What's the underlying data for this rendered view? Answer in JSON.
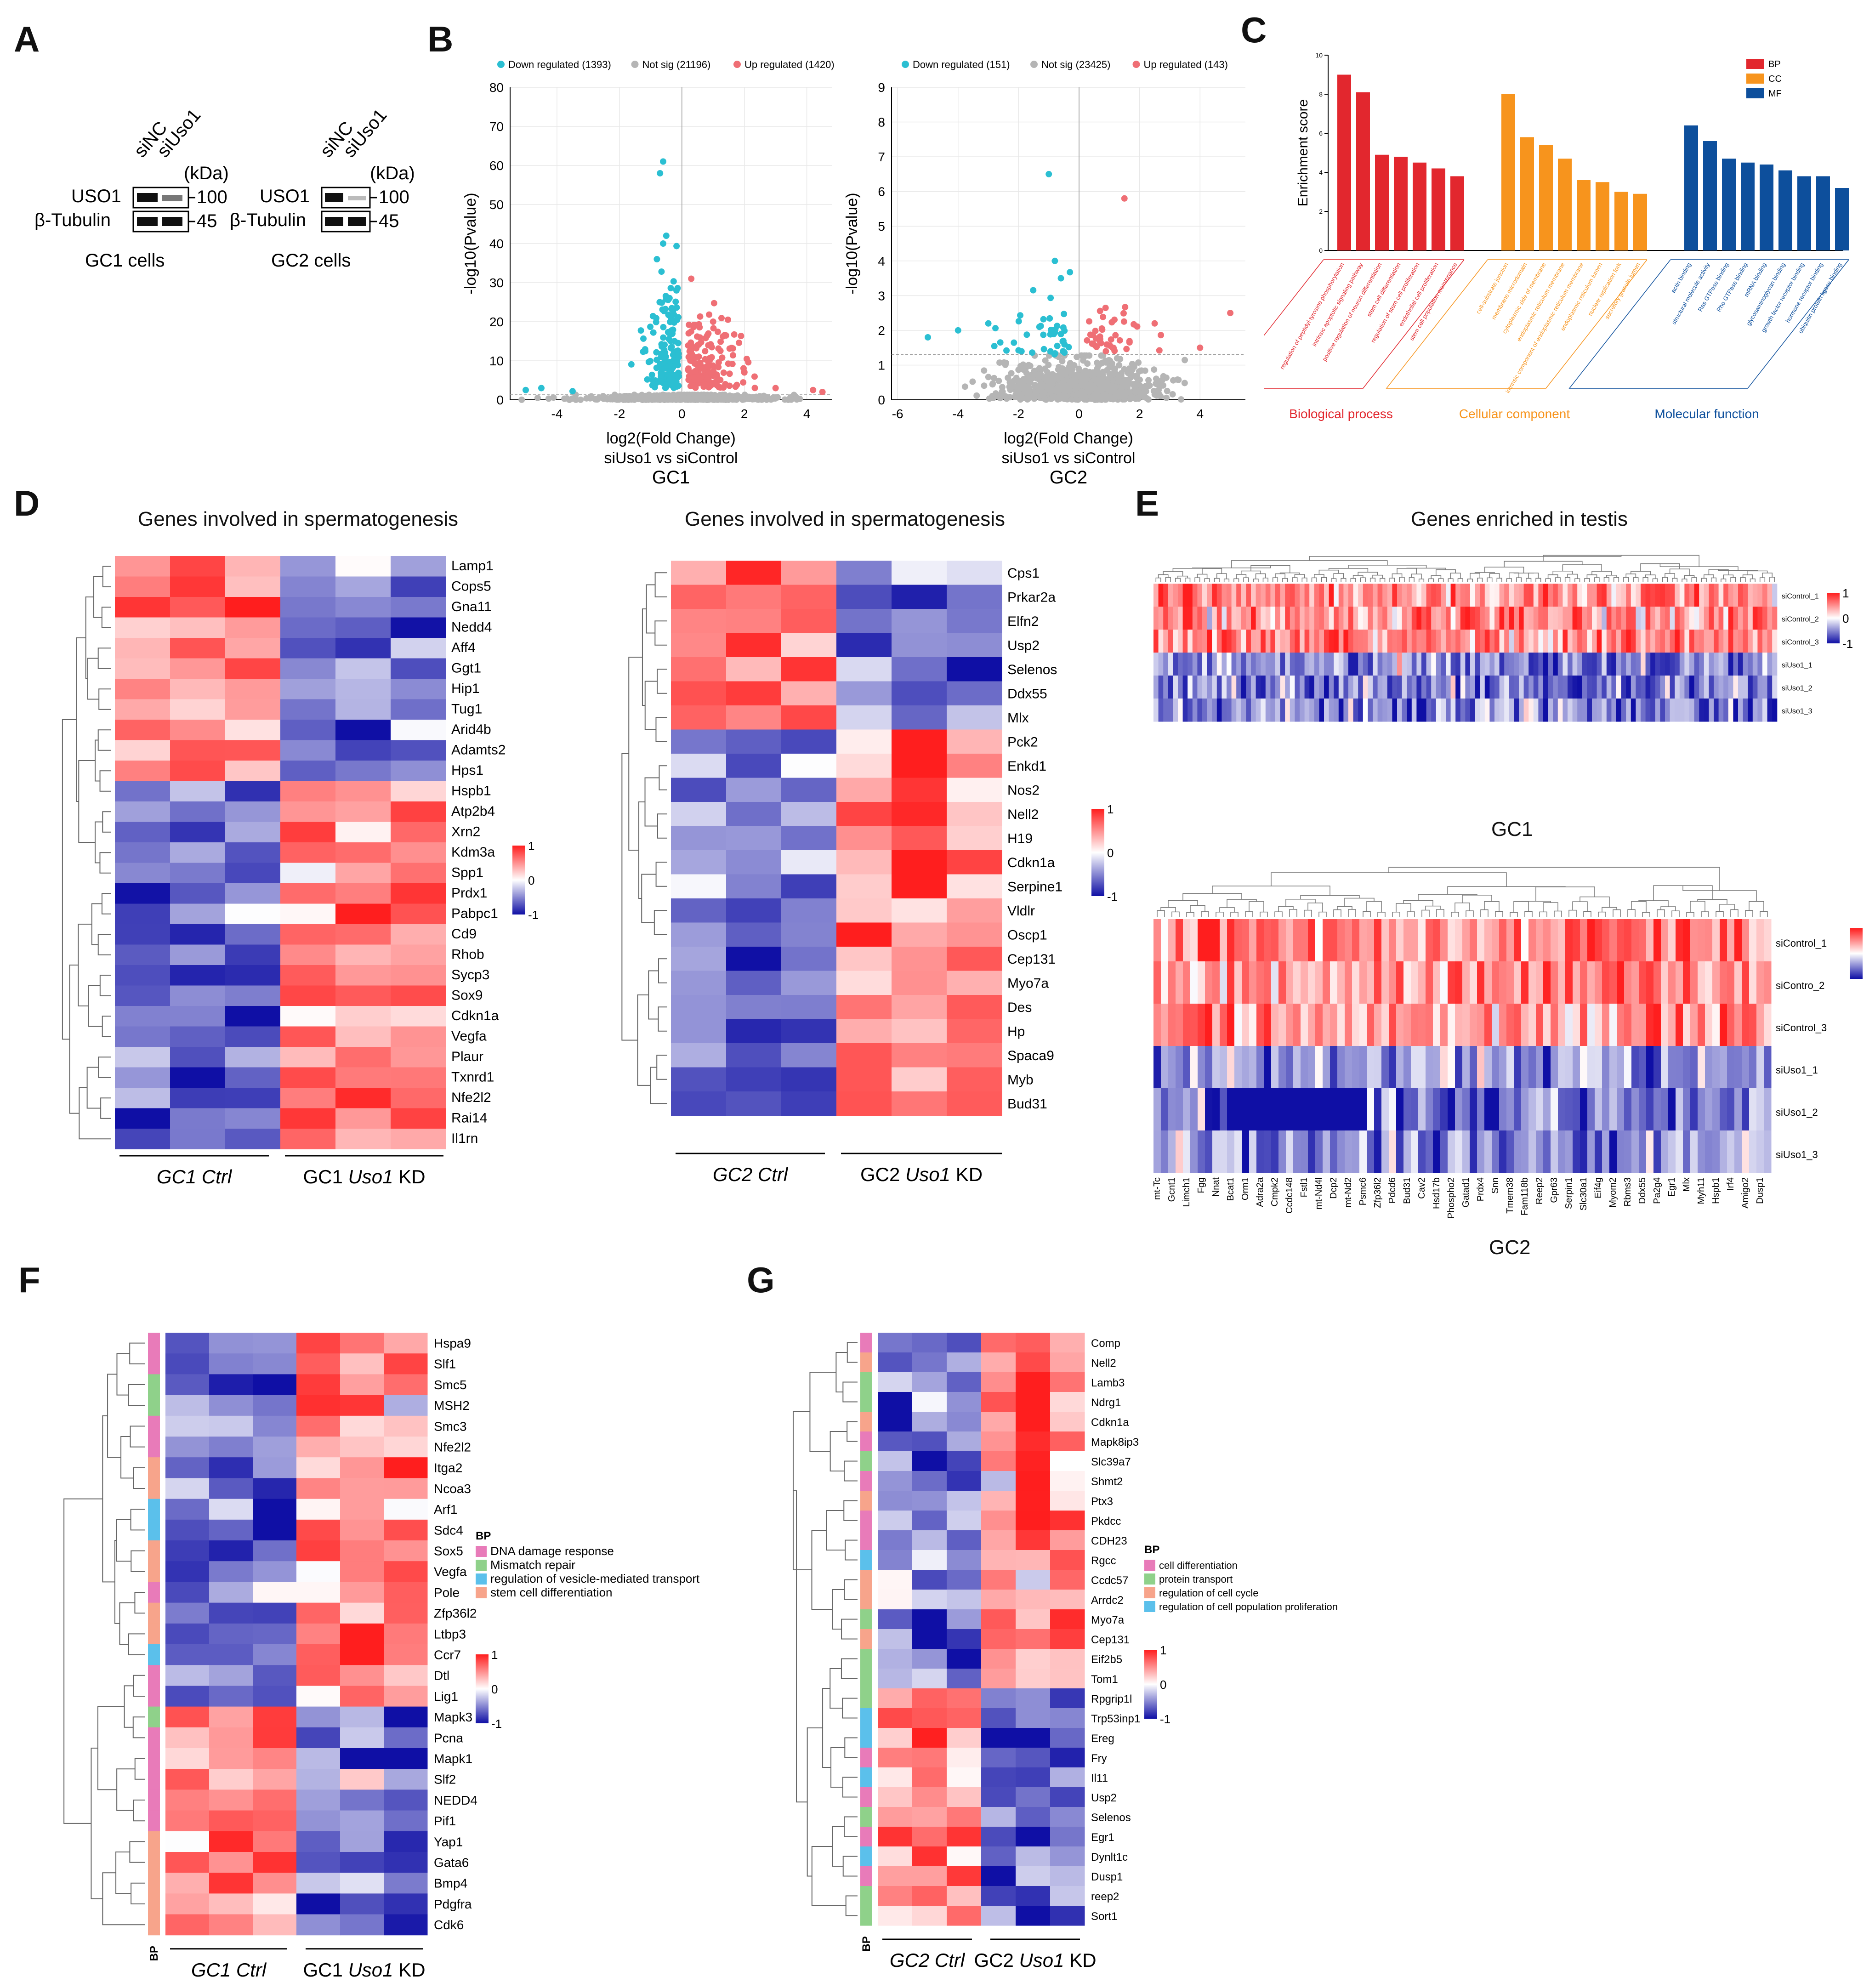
{
  "panelA": {
    "label": "A",
    "siNC": "siNC",
    "siUso1": "siUso1",
    "kda": "(kDa)",
    "uso1": "USO1",
    "tubulin": "β-Tubulin",
    "m100": "100",
    "m45": "45",
    "gc1": "GC1 cells",
    "gc2": "GC2 cells"
  },
  "panelB": {
    "label": "B",
    "gc1": {
      "legend_down": "Down regulated (1393)",
      "legend_ns": "Not sig (21196)",
      "legend_up": "Up regulated (1420)",
      "yticks": [
        "0",
        "10",
        "20",
        "30",
        "40",
        "50",
        "60",
        "70",
        "80"
      ],
      "xticks": [
        "-4",
        "-2",
        "0",
        "2",
        "4"
      ],
      "xlabel": "log2(Fold Change)",
      "comparison": "siUso1 vs siControl",
      "cell": "GC1"
    },
    "gc2": {
      "legend_down": "Down regulated (151)",
      "legend_ns": "Not sig (23425)",
      "legend_up": "Up regulated (143)",
      "yticks": [
        "0",
        "1",
        "2",
        "3",
        "4",
        "5",
        "6",
        "7",
        "8",
        "9"
      ],
      "xticks": [
        "-6",
        "-4",
        "-2",
        "0",
        "2",
        "4"
      ],
      "xlabel": "log2(Fold Change)",
      "comparison": "siUso1 vs siControl",
      "cell": "GC2"
    },
    "ylabel": "-log10(Pvalue)",
    "colors": {
      "down": "#2bbfd2",
      "ns": "#b5b5b5",
      "up": "#ef6f75"
    }
  },
  "panelC": {
    "label": "C",
    "ylabel": "Enrichment score",
    "legend": [
      "BP",
      "CC",
      "MF"
    ],
    "colors": {
      "BP": "#e2272e",
      "CC": "#f7941d",
      "MF": "#0d4f9c"
    },
    "bp_terms": [
      "regulation of peptidyl-tyrosine phosphorylation",
      "intrinsic apoptotic signaling pathway",
      "positive regulation of neuron differentiation",
      "stem cell differentiation",
      "regulation of stem cell proliferation",
      "endothelial cell proliferation",
      "stem cell population maintenance"
    ],
    "cc_terms": [
      "cell-substrate junction",
      "membrane microdomain",
      "cytoplasmic side of membrane",
      "endoplasmic reticulum membrane",
      "intrinsic component of endoplasmic reticulum membrane",
      "endoplasmic reticulum lumen",
      "nuclear replication fork",
      "secretory granule lumen"
    ],
    "mf_terms": [
      "actin binding",
      "structural molecule activity",
      "Ras GTPase binding",
      "Rho GTPase binding",
      "mRNA binding",
      "glycosaminoglycan binding",
      "growth factor receptor binding",
      "hormone receptor binding",
      "ubiquitin protein ligase binding"
    ],
    "cat_bp": "Biological process",
    "cat_cc": "Cellular component",
    "cat_mf": "Molecular function"
  },
  "panelD": {
    "label": "D",
    "title1": "Genes involved in spermatogenesis",
    "title2": "Genes involved in spermatogenesis",
    "genes1": [
      "Lamp1",
      "Cops5",
      "Gna11",
      "Nedd4",
      "Aff4",
      "Ggt1",
      "Hip1",
      "Tug1",
      "Arid4b",
      "Adamts2",
      "Hps1",
      "Hspb1",
      "Atp2b4",
      "Xrn2",
      "Kdm3a",
      "Spp1",
      "Prdx1",
      "Pabpc1",
      "Cd9",
      "Rhob",
      "Sycp3",
      "Sox9",
      "Cdkn1a",
      "Vegfa",
      "Plaur",
      "Txnrd1",
      "Nfe2l2",
      "Rai14",
      "Il1rn"
    ],
    "genes2": [
      "Cps1",
      "Prkar2a",
      "Elfn2",
      "Usp2",
      "Selenos",
      "Ddx55",
      "Mlx",
      "Pck2",
      "Enkd1",
      "Nos2",
      "Nell2",
      "H19",
      "Cdkn1a",
      "Serpine1",
      "Vldlr",
      "Oscp1",
      "Cep131",
      "Myo7a",
      "Des",
      "Hp",
      "Spaca9",
      "Myb",
      "Bud31"
    ],
    "scale": [
      "1",
      "0",
      "-1"
    ],
    "group1_ctrl": "GC1 Ctrl",
    "group1_kd_prefix": "GC1 ",
    "group1_kd_gene": "Uso1",
    "group1_kd_suffix": " KD",
    "group2_ctrl": "GC2 Ctrl",
    "group2_kd_prefix": "GC2 ",
    "group2_kd_gene": "Uso1",
    "group2_kd_suffix": " KD"
  },
  "panelE": {
    "label": "E",
    "title": "Genes enriched in testis",
    "rows1": [
      "siControl_1",
      "siControl_2",
      "siControl_3",
      "siUso1_1",
      "siUso1_2",
      "siUso1_3"
    ],
    "rows2": [
      "siControl_1",
      "siContro_2",
      "siControl_3",
      "siUso1_1",
      "siUso1_2",
      "siUso1_3"
    ],
    "scale": [
      "1",
      "0",
      "-1"
    ],
    "gc1": "GC1",
    "gc2": "GC2",
    "cols2": [
      "mt-Tc",
      "Gcnt1",
      "Limch1",
      "Fgg",
      "Nnat",
      "Bcat1",
      "Orm1",
      "Adra2a",
      "Cmpk2",
      "Ccdc148",
      "Fstl1",
      "mt-Nd4l",
      "Dcp2",
      "mt-Nd2",
      "Psmc6",
      "Zfp36l2",
      "Pdcd6",
      "Bud31",
      "Cav2",
      "Hsd17b",
      "Phospho2",
      "Gatad1",
      "Prdx4",
      "Snn",
      "Tmem38",
      "Fam118b",
      "Reep2",
      "Gpr63",
      "Serpin1",
      "Slc30a1",
      "Eif4g",
      "Myom2",
      "Rbms3",
      "Ddx55",
      "Pa2g4",
      "Egr1",
      "Mlx",
      "Myh11",
      "Hspb1",
      "Irf4",
      "Amigo2",
      "Dusp1"
    ]
  },
  "panelF": {
    "label": "F",
    "genes": [
      "Hspa9",
      "Slf1",
      "Smc5",
      "MSH2",
      "Smc3",
      "Nfe2l2",
      "Itga2",
      "Ncoa3",
      "Arf1",
      "Sdc4",
      "Sox5",
      "Vegfa",
      "Pole",
      "Zfp36l2",
      "Ltbp3",
      "Ccr7",
      "Dtl",
      "Lig1",
      "Mapk3",
      "Pcna",
      "Mapk1",
      "Slf2",
      "NEDD4",
      "Pif1",
      "Yap1",
      "Gata6",
      "Bmp4",
      "Pdgfra",
      "Cdk6"
    ],
    "legend_title": "BP",
    "legend": [
      "DNA damage response",
      "Mismatch repair",
      "regulation of vesicle-mediated transport",
      "stem cell differentiation"
    ],
    "legend_colors": [
      "#e87bb9",
      "#8fd18a",
      "#5bc0eb",
      "#f7a48b"
    ],
    "bp_axis": "BP",
    "scale": [
      "1",
      "0",
      "-1"
    ],
    "ctrl": "GC1 Ctrl",
    "kd_prefix": "GC1 ",
    "kd_gene": "Uso1",
    "kd_suffix": " KD"
  },
  "panelG": {
    "label": "G",
    "genes": [
      "Comp",
      "Nell2",
      "Lamb3",
      "Ndrg1",
      "Cdkn1a",
      "Mapk8ip3",
      "Slc39a7",
      "Shmt2",
      "Ptx3",
      "Pkdcc",
      "CDH23",
      "Rgcc",
      "Ccdc57",
      "Arrdc2",
      "Myo7a",
      "Cep131",
      "Eif2b5",
      "Tom1",
      "Rpgrip1l",
      "Trp53inp1",
      "Ereg",
      "Fry",
      "Il11",
      "Usp2",
      "Selenos",
      "Egr1",
      "Dynlt1c",
      "Dusp1",
      "reep2",
      "Sort1"
    ],
    "legend_title": "BP",
    "legend": [
      "cell differentiation",
      "protein transport",
      "regulation of cell cycle",
      "regulation of cell population proliferation"
    ],
    "legend_colors": [
      "#e87bb9",
      "#8fd18a",
      "#f7a48b",
      "#5bc0eb"
    ],
    "bp_axis": "BP",
    "scale": [
      "1",
      "0",
      "-1"
    ],
    "ctrl": "GC2 Ctrl",
    "kd_prefix": "GC2 ",
    "kd_gene": "Uso1",
    "kd_suffix": " KD"
  }
}
